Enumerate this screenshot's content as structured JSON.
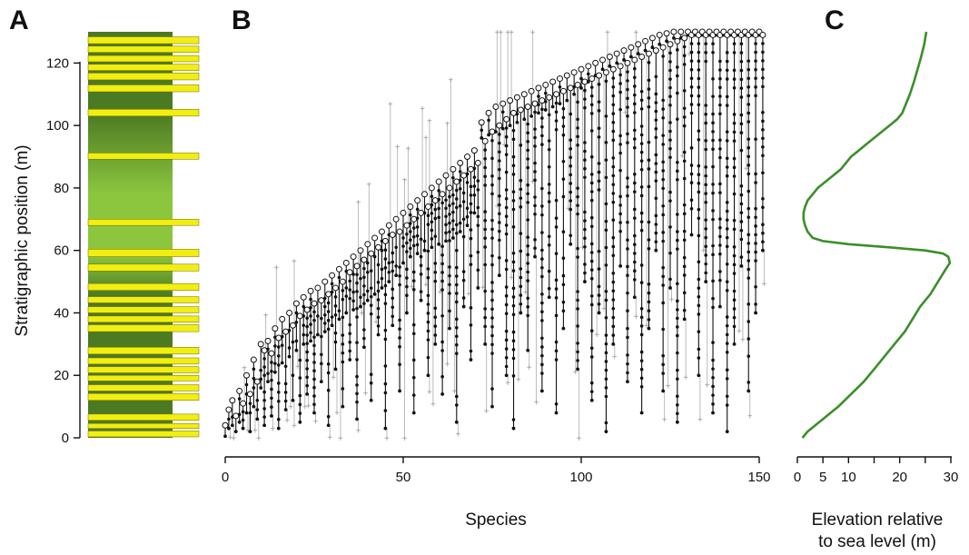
{
  "panels": {
    "a": {
      "letter": "A"
    },
    "b": {
      "letter": "B"
    },
    "c": {
      "letter": "C"
    }
  },
  "colors": {
    "column_green_dark": "#4c7a22",
    "column_green_light": "#8cc63f",
    "bed_yellow": "#f2ee12",
    "bed_outline": "#6b6b00",
    "range_line": "#111111",
    "range_uncertain": "#bdbdbd",
    "curve_green": "#3a8f2a"
  },
  "chart_data": [
    {
      "panel": "A",
      "type": "stratigraphic-column",
      "ylabel": "Stratigraphic position (m)",
      "ylim": [
        0,
        130
      ],
      "yticks": [
        0,
        20,
        40,
        60,
        80,
        100,
        120
      ],
      "light_interval_m": [
        60,
        100
      ],
      "yellow_beds_m": [
        {
          "bottom": 0.3,
          "top": 2.2
        },
        {
          "bottom": 3.0,
          "top": 4.6
        },
        {
          "bottom": 5.6,
          "top": 7.6
        },
        {
          "bottom": 12.0,
          "top": 14.2
        },
        {
          "bottom": 15.0,
          "top": 17.0
        },
        {
          "bottom": 18.2,
          "top": 20.0
        },
        {
          "bottom": 20.8,
          "top": 22.8
        },
        {
          "bottom": 23.6,
          "top": 25.6
        },
        {
          "bottom": 26.8,
          "top": 29.0
        },
        {
          "bottom": 34.0,
          "top": 36.2
        },
        {
          "bottom": 37.0,
          "top": 39.0
        },
        {
          "bottom": 40.0,
          "top": 42.0
        },
        {
          "bottom": 43.2,
          "top": 45.2
        },
        {
          "bottom": 47.2,
          "top": 49.4
        },
        {
          "bottom": 53.4,
          "top": 55.6
        },
        {
          "bottom": 58.0,
          "top": 60.4
        },
        {
          "bottom": 68.0,
          "top": 70.0
        },
        {
          "bottom": 89.2,
          "top": 91.2
        },
        {
          "bottom": 103.0,
          "top": 105.2
        },
        {
          "bottom": 110.8,
          "top": 113.0
        },
        {
          "bottom": 114.6,
          "top": 116.8
        },
        {
          "bottom": 117.6,
          "top": 119.6
        },
        {
          "bottom": 120.4,
          "top": 122.4
        },
        {
          "bottom": 123.4,
          "top": 125.4
        },
        {
          "bottom": 126.2,
          "top": 128.4
        }
      ]
    },
    {
      "panel": "B",
      "type": "range-chart",
      "xlabel": "Species",
      "xlim": [
        0,
        152
      ],
      "ylim": [
        0,
        130
      ],
      "xticks": [
        0,
        50,
        100,
        150
      ],
      "n_species": 152,
      "species_first_last_m": [
        [
          0,
          0.5,
          4
        ],
        [
          1,
          3,
          9
        ],
        [
          2,
          4,
          12
        ],
        [
          3,
          2,
          7
        ],
        [
          4,
          5,
          15
        ],
        [
          5,
          3,
          11
        ],
        [
          6,
          8,
          20
        ],
        [
          7,
          2,
          14
        ],
        [
          8,
          10,
          25
        ],
        [
          9,
          6,
          18
        ],
        [
          10,
          16,
          30
        ],
        [
          11,
          4,
          28
        ],
        [
          12,
          18,
          31
        ],
        [
          13,
          7,
          27
        ],
        [
          14,
          21,
          35
        ],
        [
          15,
          3,
          32
        ],
        [
          16,
          24,
          38
        ],
        [
          17,
          9,
          34
        ],
        [
          18,
          26,
          40
        ],
        [
          19,
          12,
          36
        ],
        [
          20,
          28,
          43
        ],
        [
          21,
          5,
          39
        ],
        [
          22,
          30,
          45
        ],
        [
          23,
          14,
          41
        ],
        [
          24,
          31,
          47
        ],
        [
          25,
          8,
          43
        ],
        [
          26,
          33,
          48
        ],
        [
          27,
          18,
          44
        ],
        [
          28,
          34,
          50
        ],
        [
          29,
          4,
          46
        ],
        [
          30,
          36,
          52
        ],
        [
          31,
          22,
          48
        ],
        [
          32,
          38,
          54
        ],
        [
          33,
          10,
          50
        ],
        [
          34,
          40,
          56
        ],
        [
          35,
          25,
          53
        ],
        [
          36,
          41,
          58
        ],
        [
          37,
          6,
          55
        ],
        [
          38,
          42,
          60
        ],
        [
          39,
          29,
          57
        ],
        [
          40,
          44,
          62
        ],
        [
          41,
          12,
          59
        ],
        [
          42,
          46,
          64
        ],
        [
          43,
          33,
          61
        ],
        [
          44,
          48,
          66
        ],
        [
          45,
          3,
          63
        ],
        [
          46,
          50,
          68
        ],
        [
          47,
          36,
          65
        ],
        [
          48,
          52,
          70
        ],
        [
          49,
          15,
          66
        ],
        [
          50,
          56,
          72
        ],
        [
          51,
          40,
          68
        ],
        [
          52,
          58,
          74
        ],
        [
          53,
          8,
          70
        ],
        [
          54,
          59,
          76
        ],
        [
          55,
          44,
          72
        ],
        [
          56,
          60,
          78
        ],
        [
          57,
          20,
          74
        ],
        [
          58,
          61,
          80
        ],
        [
          59,
          30,
          76
        ],
        [
          60,
          62,
          82
        ],
        [
          61,
          14,
          78
        ],
        [
          62,
          63,
          84
        ],
        [
          63,
          35,
          80
        ],
        [
          64,
          64,
          86
        ],
        [
          65,
          5,
          82
        ],
        [
          66,
          66,
          88
        ],
        [
          67,
          42,
          84
        ],
        [
          68,
          68,
          90
        ],
        [
          69,
          25,
          86
        ],
        [
          70,
          72,
          92
        ],
        [
          71,
          48,
          88
        ],
        [
          72,
          96,
          101
        ],
        [
          73,
          30,
          95
        ],
        [
          74,
          97,
          104
        ],
        [
          75,
          10,
          98
        ],
        [
          76,
          98,
          106
        ],
        [
          77,
          52,
          100
        ],
        [
          78,
          99,
          107
        ],
        [
          79,
          20,
          102
        ],
        [
          80,
          100,
          108
        ],
        [
          81,
          3,
          104
        ],
        [
          82,
          101,
          109
        ],
        [
          83,
          40,
          105
        ],
        [
          84,
          102,
          110
        ],
        [
          85,
          28,
          106
        ],
        [
          86,
          103,
          111
        ],
        [
          87,
          58,
          107
        ],
        [
          88,
          104,
          112
        ],
        [
          89,
          15,
          108
        ],
        [
          90,
          105,
          113
        ],
        [
          91,
          45,
          109
        ],
        [
          92,
          106,
          114
        ],
        [
          93,
          8,
          110
        ],
        [
          94,
          107,
          115
        ],
        [
          95,
          35,
          111
        ],
        [
          96,
          108,
          116
        ],
        [
          97,
          62,
          112
        ],
        [
          98,
          110,
          117
        ],
        [
          99,
          22,
          113
        ],
        [
          100,
          112,
          118
        ],
        [
          101,
          50,
          114
        ],
        [
          102,
          114,
          119
        ],
        [
          103,
          12,
          115
        ],
        [
          104,
          116,
          120
        ],
        [
          105,
          40,
          116
        ],
        [
          106,
          118,
          121
        ],
        [
          107,
          2,
          117
        ],
        [
          108,
          119,
          122
        ],
        [
          109,
          30,
          118
        ],
        [
          110,
          120,
          123
        ],
        [
          111,
          55,
          119
        ],
        [
          112,
          121,
          124
        ],
        [
          113,
          18,
          120
        ],
        [
          114,
          122,
          125
        ],
        [
          115,
          45,
          121
        ],
        [
          116,
          123,
          126
        ],
        [
          117,
          8,
          122
        ],
        [
          118,
          124,
          127
        ],
        [
          119,
          35,
          123
        ],
        [
          120,
          125,
          128
        ],
        [
          121,
          60,
          124
        ],
        [
          122,
          126,
          129
        ],
        [
          123,
          15,
          125
        ],
        [
          124,
          127,
          129.5
        ],
        [
          125,
          48,
          126
        ],
        [
          126,
          128,
          130
        ],
        [
          127,
          5,
          127
        ],
        [
          128,
          128,
          130
        ],
        [
          129,
          38,
          128
        ],
        [
          130,
          129,
          130
        ],
        [
          131,
          65,
          129
        ],
        [
          132,
          129,
          130
        ],
        [
          133,
          20,
          129
        ],
        [
          134,
          129,
          130
        ],
        [
          135,
          50,
          129
        ],
        [
          136,
          129,
          130
        ],
        [
          137,
          8,
          129
        ],
        [
          138,
          129,
          130
        ],
        [
          139,
          42,
          129
        ],
        [
          140,
          129,
          130
        ],
        [
          141,
          2,
          129
        ],
        [
          142,
          129,
          130
        ],
        [
          143,
          30,
          129
        ],
        [
          144,
          129,
          130
        ],
        [
          145,
          55,
          129
        ],
        [
          146,
          129,
          130
        ],
        [
          147,
          15,
          129
        ],
        [
          148,
          129,
          130
        ],
        [
          149,
          40,
          129
        ],
        [
          150,
          129,
          130
        ],
        [
          151,
          60,
          129
        ]
      ]
    },
    {
      "panel": "C",
      "type": "line",
      "xlabel": "Elevation relative\nto sea level (m)",
      "xlim": [
        0,
        30
      ],
      "ylim": [
        0,
        130
      ],
      "xticks": [
        0,
        5,
        10,
        15,
        20,
        25,
        30
      ],
      "xtick_labels": [
        "0",
        "5",
        "10",
        "",
        "20",
        "",
        "30"
      ],
      "series": [
        {
          "y": [
            0,
            2,
            4,
            6,
            8,
            10,
            14,
            18,
            22,
            26,
            30,
            34,
            38,
            42,
            46,
            50,
            54,
            56,
            58,
            59,
            60,
            61,
            62,
            63,
            64,
            66,
            68,
            70,
            72,
            74,
            76,
            78,
            80,
            82,
            84,
            86,
            88,
            90,
            92,
            94,
            96,
            98,
            100,
            102,
            104,
            106,
            110,
            114,
            118,
            122,
            126,
            130
          ],
          "x": [
            1.0,
            2.0,
            3.5,
            5.0,
            6.5,
            8.0,
            10.5,
            13.0,
            15.0,
            17.0,
            19.0,
            21.0,
            22.5,
            24.0,
            26.0,
            27.5,
            29.0,
            29.8,
            29.5,
            28.5,
            25.0,
            18.0,
            10.0,
            5.0,
            3.0,
            2.0,
            1.5,
            1.2,
            1.2,
            1.5,
            2.0,
            3.0,
            4.0,
            5.5,
            7.0,
            8.5,
            9.5,
            10.5,
            12.0,
            13.5,
            15.0,
            16.5,
            18.0,
            19.5,
            20.5,
            21.0,
            22.0,
            22.8,
            23.5,
            24.2,
            24.8,
            25.2
          ]
        }
      ]
    }
  ]
}
